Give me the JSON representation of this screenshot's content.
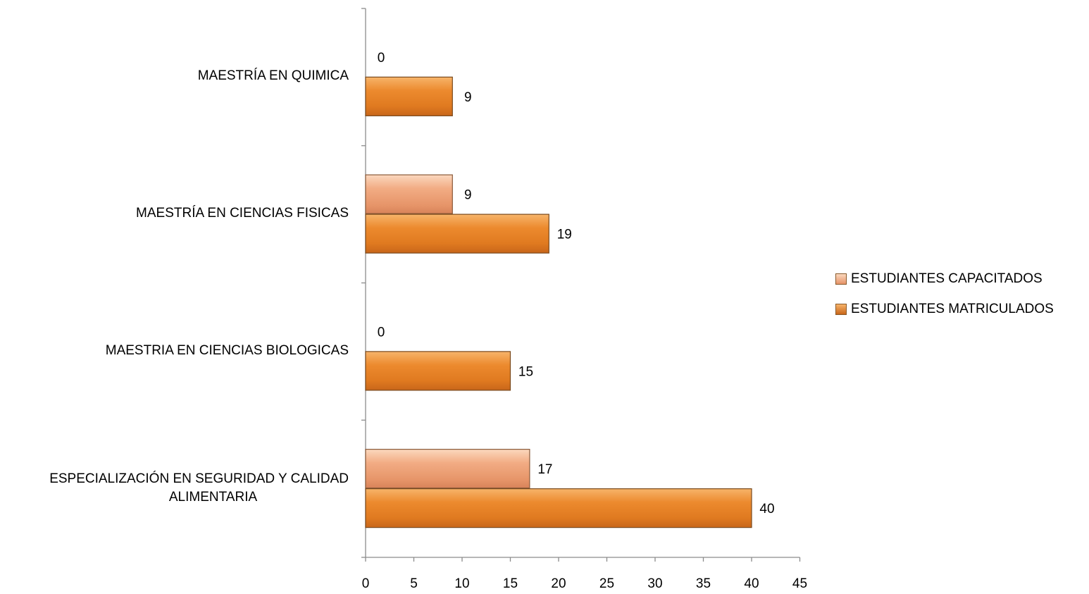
{
  "chart_data": {
    "type": "bar",
    "orientation": "horizontal",
    "categories": [
      "ESPECIALIZACIÓN EN SEGURIDAD Y CALIDAD ALIMENTARIA",
      "MAESTRIA EN CIENCIAS BIOLOGICAS",
      "MAESTRÍA EN CIENCIAS FISICAS",
      "MAESTRÍA EN QUIMICA"
    ],
    "category_lines": [
      [
        "ESPECIALIZACIÓN EN SEGURIDAD Y CALIDAD",
        "ALIMENTARIA"
      ],
      [
        "MAESTRIA EN CIENCIAS BIOLOGICAS"
      ],
      [
        "MAESTRÍA EN CIENCIAS FISICAS"
      ],
      [
        "MAESTRÍA EN QUIMICA"
      ]
    ],
    "series": [
      {
        "name": "ESTUDIANTES MATRICULADOS",
        "values": [
          40,
          15,
          19,
          9
        ],
        "color": "#E8822A"
      },
      {
        "name": "ESTUDIANTES CAPACITADOS",
        "values": [
          17,
          0,
          9,
          0
        ],
        "color": "#EFA27A"
      }
    ],
    "xlim": [
      0,
      45
    ],
    "x_ticks": [
      "0",
      "5",
      "10",
      "15",
      "20",
      "25",
      "30",
      "35",
      "40",
      "45"
    ],
    "legend_position": "right",
    "grid": false,
    "title": "",
    "xlabel": "",
    "ylabel": ""
  },
  "legend": {
    "items": [
      {
        "label": "ESTUDIANTES CAPACITADOS",
        "color": "#EFA27A"
      },
      {
        "label": "ESTUDIANTES MATRICULADOS",
        "color": "#E8822A"
      }
    ]
  }
}
